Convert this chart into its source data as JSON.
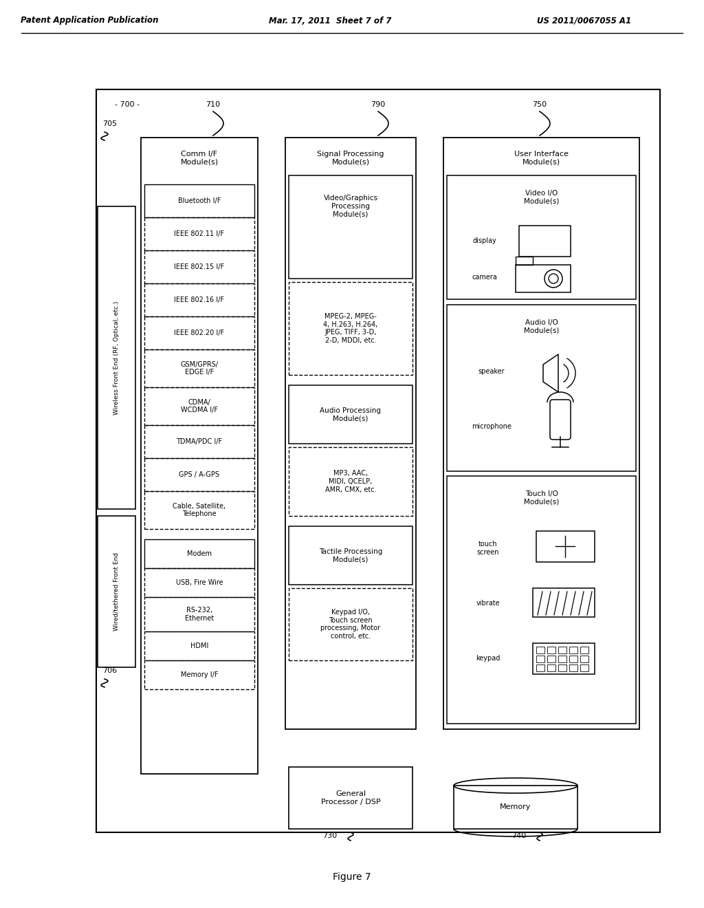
{
  "title_left": "Patent Application Publication",
  "title_mid": "Mar. 17, 2011  Sheet 7 of 7",
  "title_right": "US 2011/0067055 A1",
  "figure_label": "Figure 7",
  "bg_color": "#ffffff",
  "diagram_label": "- 700 -",
  "ref_numbers": {
    "700": "- 700 -",
    "705": "705",
    "706": "706",
    "710": "710",
    "790": "790",
    "750": "750",
    "730": "730",
    "740": "740"
  }
}
